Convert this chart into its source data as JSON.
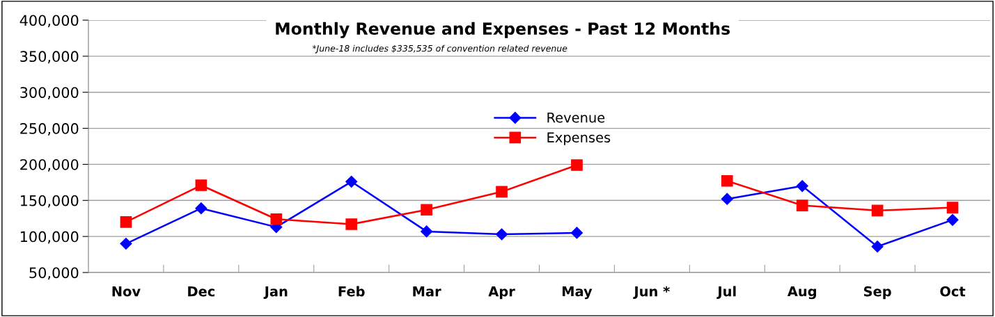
{
  "chart_data": {
    "type": "line",
    "title": "Monthly Revenue and Expenses - Past 12 Months",
    "annotations": [
      "*June-18 includes $335,535 of convention related revenue"
    ],
    "categories": [
      "Nov",
      "Dec",
      "Jan",
      "Feb",
      "Mar",
      "Apr",
      "May",
      "Jun *",
      "Jul",
      "Aug",
      "Sep",
      "Oct"
    ],
    "series": [
      {
        "name": "Revenue",
        "color": "#0000ff",
        "marker": "diamond",
        "values": [
          90000,
          139000,
          113000,
          176000,
          107000,
          103000,
          105000,
          null,
          152000,
          170000,
          86000,
          123000
        ]
      },
      {
        "name": "Expenses",
        "color": "#ff0000",
        "marker": "square",
        "values": [
          120000,
          171000,
          124000,
          117000,
          137000,
          162000,
          199000,
          null,
          177000,
          143000,
          136000,
          140000
        ]
      }
    ],
    "ylim": [
      50000,
      400000
    ],
    "yticks": [
      {
        "value": 50000,
        "label": "50,000"
      },
      {
        "value": 100000,
        "label": "100,000"
      },
      {
        "value": 150000,
        "label": "150,000"
      },
      {
        "value": 200000,
        "label": "200,000"
      },
      {
        "value": 250000,
        "label": "250,000"
      },
      {
        "value": 300000,
        "label": "300,000"
      },
      {
        "value": 350000,
        "label": "350,000"
      },
      {
        "value": 400000,
        "label": "400,000"
      }
    ],
    "grid": "y",
    "legend": "center"
  }
}
